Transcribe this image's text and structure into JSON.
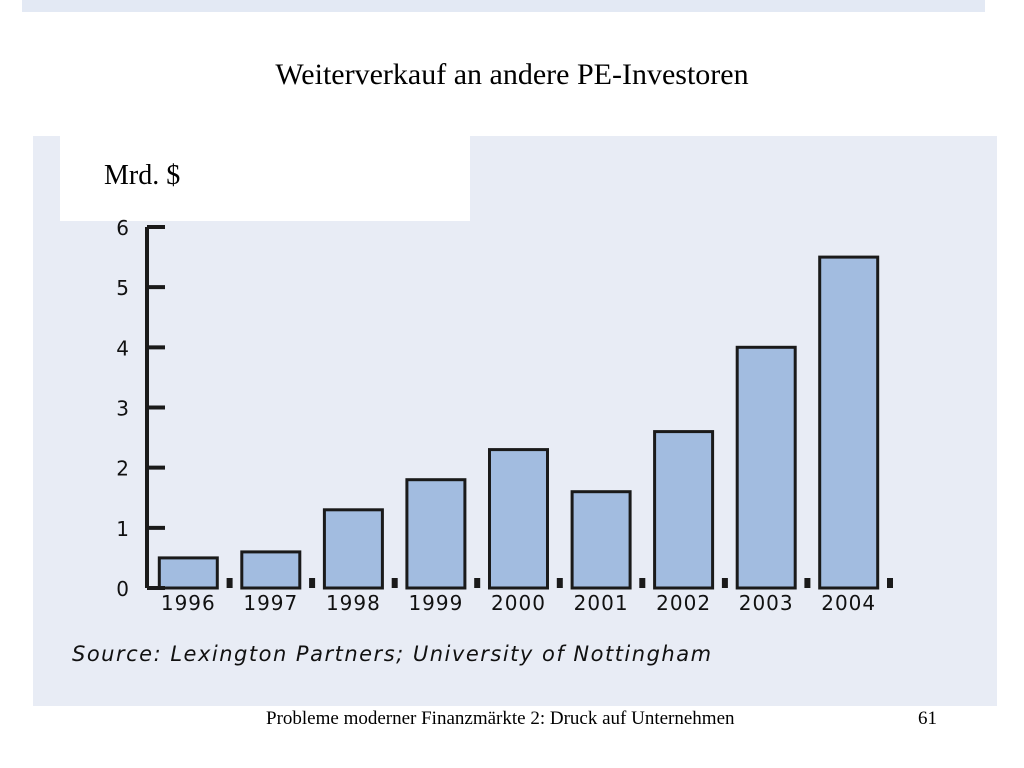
{
  "slide": {
    "title": "Weiterverkauf an andere PE-Investoren",
    "unit_label": "Mrd. $",
    "source": "Source: Lexington Partners; University of Nottingham",
    "footer": "Probleme moderner Finanzmärkte 2: Druck auf Unternehmen",
    "page_number": "61"
  },
  "colors": {
    "bar_fill": "#a2bce0",
    "bar_stroke": "#1a1a1a",
    "panel_background": "#e8ecf5"
  },
  "chart_data": {
    "type": "bar",
    "title": "",
    "xlabel": "",
    "ylabel": "Mrd. $",
    "categories": [
      "1996",
      "1997",
      "1998",
      "1999",
      "2000",
      "2001",
      "2002",
      "2003",
      "2004"
    ],
    "values": [
      0.5,
      0.6,
      1.3,
      1.8,
      2.3,
      1.6,
      2.6,
      4.0,
      5.5
    ],
    "ylim": [
      0,
      6
    ],
    "yticks": [
      0,
      1,
      2,
      3,
      4,
      5,
      6
    ],
    "grid": false,
    "legend": "none"
  }
}
